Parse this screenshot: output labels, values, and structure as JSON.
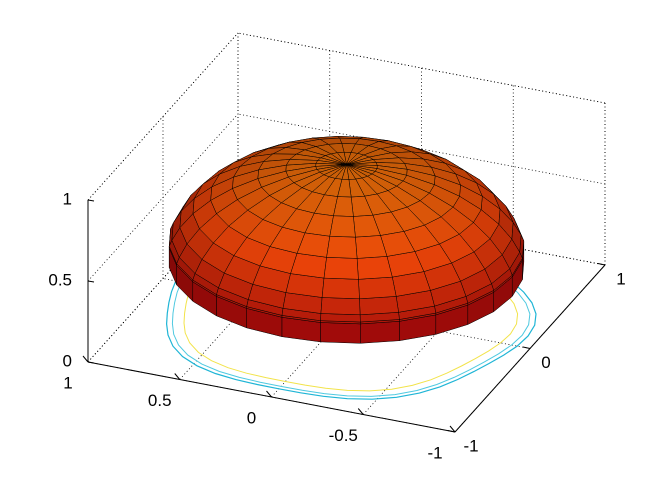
{
  "chart_data": {
    "type": "surface",
    "xlim": [
      -1,
      1
    ],
    "ylim": [
      -1,
      1
    ],
    "zlim": [
      0,
      1
    ],
    "xticks": [
      -1,
      -0.5,
      0,
      0.5,
      1
    ],
    "yticks": [
      -1,
      0,
      1
    ],
    "zticks": [
      0,
      0.5,
      1
    ],
    "grid": true
  }
}
